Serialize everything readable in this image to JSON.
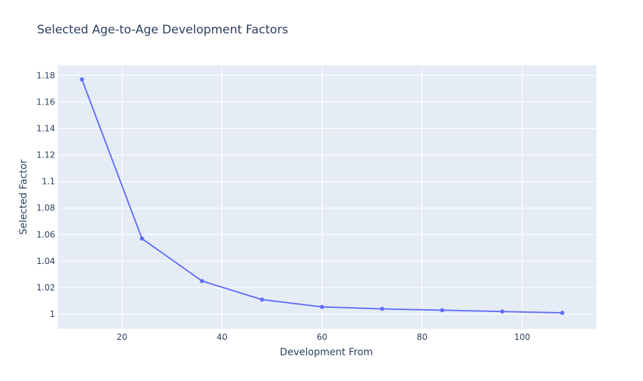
{
  "chart_data": {
    "type": "line",
    "title": "Selected Age-to-Age Development Factors",
    "xlabel": "Development From",
    "ylabel": "Selected Factor",
    "xlim": [
      7.2,
      114.8
    ],
    "ylim": [
      0.989,
      1.1875
    ],
    "x_ticks": [
      20,
      40,
      60,
      80,
      100
    ],
    "y_ticks": [
      1,
      1.02,
      1.04,
      1.06,
      1.08,
      1.1,
      1.12,
      1.14,
      1.16,
      1.18
    ],
    "grid": true,
    "series": [
      {
        "x": [
          12,
          24,
          36,
          48,
          60,
          72,
          84,
          96,
          108
        ],
        "y": [
          1.177,
          1.057,
          1.025,
          1.011,
          1.0055,
          1.004,
          1.003,
          1.002,
          1.001
        ],
        "mode": "lines+markers"
      }
    ]
  },
  "colors": {
    "plot_background": "#e5ecf6",
    "grid": "#ffffff",
    "line": "#636efa",
    "text": "#2a3f5f"
  }
}
